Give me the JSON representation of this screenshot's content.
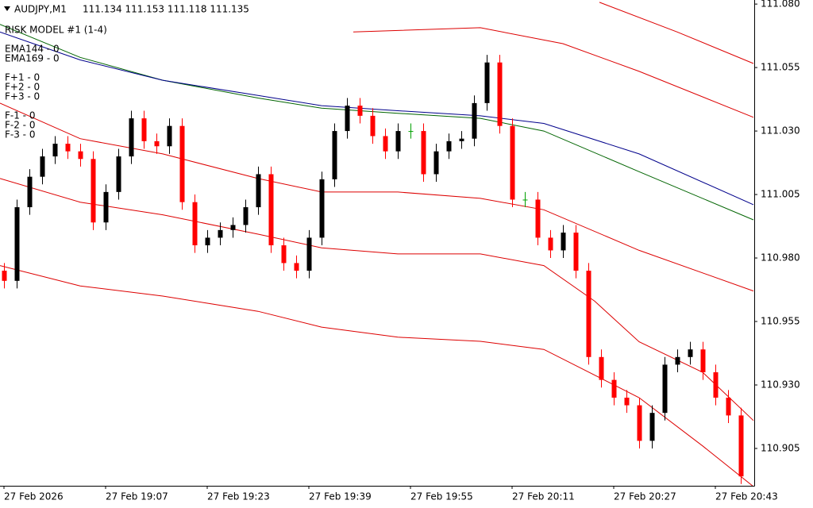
{
  "chart_data": {
    "type": "candlestick",
    "symbol": "AUDJPY,M1",
    "quote": "111.134 111.153 111.118 111.135",
    "indicator": "RISK MODEL #1 (1-4)",
    "indicator_labels": [
      "EMA144 - 0",
      "EMA169 - 0",
      "F+1 - 0",
      "F+2 - 0",
      "F+3 - 0",
      "F-1 - 0",
      "F-2 - 0",
      "F-3 - 0"
    ],
    "up_color": "#000000",
    "down_color": "#ff0000",
    "doji_color": "#00a000",
    "xlim": [
      -0.625,
      118.125
    ],
    "xticks": [
      {
        "value": 0,
        "label": "27 Feb 2026"
      },
      {
        "value": 16,
        "label": "27 Feb 19:07"
      },
      {
        "value": 32,
        "label": "27 Feb 19:23"
      },
      {
        "value": 48,
        "label": "27 Feb 19:39"
      },
      {
        "value": 64,
        "label": "27 Feb 19:55"
      },
      {
        "value": 80,
        "label": "27 Feb 20:11"
      },
      {
        "value": 96,
        "label": "27 Feb 20:27"
      },
      {
        "value": 112,
        "label": "27 Feb 20:43"
      }
    ],
    "ylim": [
      110.8903,
      111.0816
    ],
    "yticks": [
      {
        "value": 111.08,
        "label": "111.080"
      },
      111.055,
      {
        "value": 111.03,
        "label": "111.030"
      },
      111.005,
      {
        "value": 110.98,
        "label": "110.980"
      },
      110.955,
      {
        "value": 110.93,
        "label": "110.930"
      },
      110.905
    ],
    "x": [
      0,
      2,
      4,
      6,
      8,
      10,
      12,
      14,
      16,
      18,
      20,
      22,
      24,
      26,
      28,
      30,
      32,
      34,
      36,
      38,
      40,
      42,
      44,
      46,
      48,
      50,
      52,
      54,
      56,
      58,
      60,
      62,
      64,
      66,
      68,
      70,
      72,
      74,
      76,
      78,
      80,
      82,
      84,
      86,
      88,
      90,
      92,
      94,
      96,
      98,
      100,
      102,
      104,
      106,
      108,
      110,
      112,
      114,
      116
    ],
    "open": [
      110.975,
      110.971,
      111.0,
      111.012,
      111.02,
      111.025,
      111.022,
      111.019,
      110.994,
      111.006,
      111.02,
      111.035,
      111.026,
      111.024,
      111.032,
      111.002,
      110.985,
      110.988,
      110.991,
      110.993,
      111.0,
      111.013,
      110.985,
      110.978,
      110.975,
      110.988,
      111.011,
      111.03,
      111.04,
      111.036,
      111.028,
      111.022,
      111.03,
      111.03,
      111.013,
      111.022,
      111.026,
      111.027,
      111.041,
      111.057,
      111.032,
      111.003,
      111.003,
      110.988,
      110.983,
      110.99,
      110.975,
      110.941,
      110.932,
      110.925,
      110.922,
      110.908,
      110.919,
      110.938,
      110.941,
      110.944,
      110.935,
      110.925,
      110.918
    ],
    "high": [
      110.978,
      111.003,
      111.015,
      111.023,
      111.028,
      111.028,
      111.025,
      111.022,
      111.009,
      111.023,
      111.038,
      111.038,
      111.029,
      111.035,
      111.035,
      111.005,
      110.991,
      110.994,
      110.996,
      111.003,
      111.016,
      111.016,
      110.988,
      110.981,
      110.991,
      111.014,
      111.033,
      111.043,
      111.043,
      111.039,
      111.031,
      111.033,
      111.033,
      111.033,
      111.025,
      111.029,
      111.03,
      111.044,
      111.06,
      111.06,
      111.035,
      111.006,
      111.006,
      110.991,
      110.993,
      110.993,
      110.978,
      110.944,
      110.935,
      110.928,
      110.925,
      110.922,
      110.941,
      110.944,
      110.947,
      110.947,
      110.938,
      110.928,
      110.921
    ],
    "low": [
      110.968,
      110.968,
      110.997,
      111.009,
      111.017,
      111.019,
      111.016,
      110.991,
      110.991,
      111.003,
      111.017,
      111.023,
      111.021,
      111.021,
      110.999,
      110.982,
      110.982,
      110.985,
      110.988,
      110.99,
      110.997,
      110.982,
      110.975,
      110.972,
      110.972,
      110.985,
      111.008,
      111.027,
      111.033,
      111.025,
      111.019,
      111.019,
      111.027,
      111.01,
      111.01,
      111.019,
      111.023,
      111.024,
      111.038,
      111.029,
      111.0,
      111.0,
      110.985,
      110.98,
      110.98,
      110.972,
      110.938,
      110.929,
      110.922,
      110.919,
      110.905,
      110.905,
      110.916,
      110.935,
      110.938,
      110.932,
      110.922,
      110.915,
      110.891
    ],
    "close": [
      110.971,
      111.0,
      111.012,
      111.02,
      111.025,
      111.022,
      111.019,
      110.994,
      111.006,
      111.02,
      111.035,
      111.026,
      111.024,
      111.032,
      111.002,
      110.985,
      110.988,
      110.991,
      110.993,
      111.0,
      111.013,
      110.985,
      110.978,
      110.975,
      110.988,
      111.011,
      111.03,
      111.04,
      111.036,
      111.028,
      111.022,
      111.03,
      111.03,
      111.013,
      111.022,
      111.026,
      111.027,
      111.041,
      111.057,
      111.032,
      111.003,
      111.003,
      110.988,
      110.983,
      110.99,
      110.975,
      110.941,
      110.932,
      110.925,
      110.922,
      110.908,
      110.919,
      110.938,
      110.941,
      110.944,
      110.935,
      110.925,
      110.918,
      110.894
    ],
    "lines": [
      {
        "color": "#006400",
        "x": [
          -0.625,
          12,
          25,
          40,
          50,
          62,
          75,
          85,
          100,
          118
        ],
        "values": [
          111.072,
          111.059,
          111.05,
          111.043,
          111.039,
          111.037,
          111.035,
          111.03,
          111.014,
          110.995
        ]
      },
      {
        "color": "#00008b",
        "x": [
          -0.625,
          12,
          25,
          40,
          50,
          62,
          75,
          85,
          100,
          118
        ],
        "values": [
          111.069,
          111.058,
          111.05,
          111.044,
          111.04,
          111.038,
          111.036,
          111.033,
          111.021,
          111.001
        ]
      },
      {
        "color": "#dd0000",
        "x": [
          -0.625,
          12,
          25,
          40,
          50,
          62,
          75,
          85,
          100,
          118
        ],
        "values": [
          111.041,
          111.027,
          111.021,
          111.0113,
          111.006,
          111.006,
          111.0035,
          110.999,
          110.983,
          110.967
        ]
      },
      {
        "color": "#dd0000",
        "x": [
          55,
          75,
          88,
          100,
          118
        ],
        "values": [
          111.069,
          111.0707,
          111.0644,
          111.0535,
          111.0354
        ]
      },
      {
        "color": "#dd0000",
        "x": [
          93.75,
          106,
          118
        ],
        "values": [
          111.0807,
          111.069,
          111.0566
        ]
      },
      {
        "color": "#dd0000",
        "x": [
          -0.625,
          12,
          25,
          40,
          50,
          62,
          75,
          85,
          93,
          100,
          110,
          118
        ],
        "values": [
          111.0113,
          111.002,
          110.997,
          110.9894,
          110.984,
          110.9816,
          110.9816,
          110.977,
          110.963,
          110.947,
          110.935,
          110.916
        ]
      },
      {
        "color": "#dd0000",
        "x": [
          -0.625,
          12,
          25,
          40,
          50,
          62,
          75,
          85,
          100,
          110,
          118
        ],
        "values": [
          110.977,
          110.969,
          110.965,
          110.959,
          110.9528,
          110.9488,
          110.9472,
          110.944,
          110.925,
          110.906,
          110.89
        ]
      }
    ]
  }
}
